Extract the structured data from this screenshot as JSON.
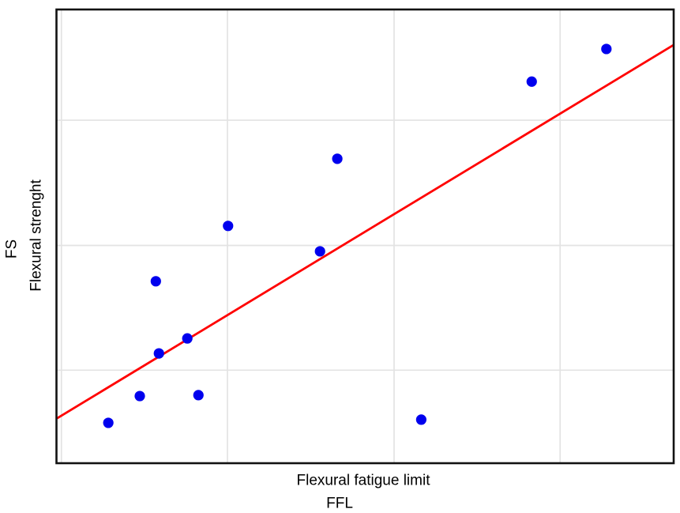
{
  "figure": {
    "background": "#ffffff"
  },
  "chart_data": {
    "type": "scatter",
    "title": "",
    "xlabel": "Flexural fatigue limit",
    "xlabel_abbrev": "FFL",
    "ylabel": "Flexural strenght",
    "ylabel_abbrev": "FS",
    "x_range": [
      0,
      1
    ],
    "y_range": [
      0,
      1
    ],
    "grid": true,
    "legend": "none",
    "tick_labels": "none",
    "points": [
      {
        "x": 0.084,
        "y": 0.089
      },
      {
        "x": 0.135,
        "y": 0.148
      },
      {
        "x": 0.23,
        "y": 0.15
      },
      {
        "x": 0.166,
        "y": 0.242
      },
      {
        "x": 0.212,
        "y": 0.275
      },
      {
        "x": 0.161,
        "y": 0.401
      },
      {
        "x": 0.427,
        "y": 0.467
      },
      {
        "x": 0.278,
        "y": 0.523
      },
      {
        "x": 0.455,
        "y": 0.671
      },
      {
        "x": 0.591,
        "y": 0.096
      },
      {
        "x": 0.77,
        "y": 0.841
      },
      {
        "x": 0.891,
        "y": 0.913
      }
    ],
    "trend_line": {
      "x1": 0.001,
      "y1": 0.099,
      "x2": 1.0,
      "y2": 0.922
    },
    "gridlines": {
      "vertical_x": [
        0.008,
        0.277,
        0.547,
        0.816
      ],
      "horizontal_y": [
        0.205,
        0.48,
        0.756
      ]
    },
    "marker": {
      "shape": "circle",
      "radius_px": 6.6
    },
    "colors": {
      "point": "#0000ee",
      "trend_line": "#ff0000",
      "gridline": "#e3e3e3",
      "plot_border": "#121212",
      "text": "#000000",
      "plot_background": "#ffffff"
    }
  }
}
